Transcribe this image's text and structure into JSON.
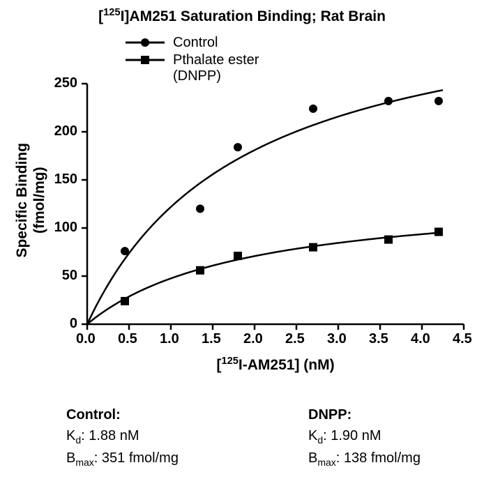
{
  "title_html": "[<sup>125</sup>I]AM251 Saturation Binding; Rat Brain",
  "legend": {
    "control": "Control",
    "dnpp_line1": "Pthalate ester",
    "dnpp_line2": "(DNPP)"
  },
  "y_axis_label_html": "Specific Binding<br>(fmol/mg)",
  "x_axis_label_html": "[<sup>125</sup>I-AM251] (nM)",
  "chart": {
    "type": "scatter-with-fit",
    "x_range": [
      0.0,
      4.5
    ],
    "y_range": [
      0,
      250
    ],
    "x_ticks": [
      0.0,
      0.5,
      1.0,
      1.5,
      2.0,
      2.5,
      3.0,
      3.5,
      4.0,
      4.5
    ],
    "x_tick_labels": [
      "0.0",
      "0.5",
      "1.0",
      "1.5",
      "2.0",
      "2.5",
      "3.0",
      "3.5",
      "4.0",
      "4.5"
    ],
    "y_ticks": [
      0,
      50,
      100,
      150,
      200,
      250
    ],
    "axis_color": "#000000",
    "axis_width": 2.5,
    "tick_length": 8,
    "tick_fontsize": 20,
    "line_width": 2.5,
    "series": {
      "control": {
        "marker": "circle",
        "marker_size": 12,
        "color": "#000000",
        "points": [
          {
            "x": 0.45,
            "y": 76
          },
          {
            "x": 1.35,
            "y": 120
          },
          {
            "x": 1.8,
            "y": 184
          },
          {
            "x": 2.7,
            "y": 224
          },
          {
            "x": 3.6,
            "y": 232
          },
          {
            "x": 4.2,
            "y": 232
          }
        ],
        "fit": {
          "bmax": 351,
          "kd": 1.88
        }
      },
      "dnpp": {
        "marker": "square",
        "marker_size": 12,
        "color": "#000000",
        "points": [
          {
            "x": 0.45,
            "y": 24
          },
          {
            "x": 1.35,
            "y": 56
          },
          {
            "x": 1.8,
            "y": 71
          },
          {
            "x": 2.7,
            "y": 80
          },
          {
            "x": 3.6,
            "y": 88
          },
          {
            "x": 4.2,
            "y": 96
          }
        ],
        "fit": {
          "bmax": 138,
          "kd": 1.9
        }
      }
    }
  },
  "results": {
    "control": {
      "heading": "Control:",
      "kd_html": "K<sub>d</sub>: 1.88 nM",
      "bmax_html": "B<sub>max</sub>: 351 fmol/mg"
    },
    "dnpp": {
      "heading": "DNPP:",
      "kd_html": "K<sub>d</sub>: 1.90 nM",
      "bmax_html": "B<sub>max</sub>: 138 fmol/mg"
    }
  }
}
